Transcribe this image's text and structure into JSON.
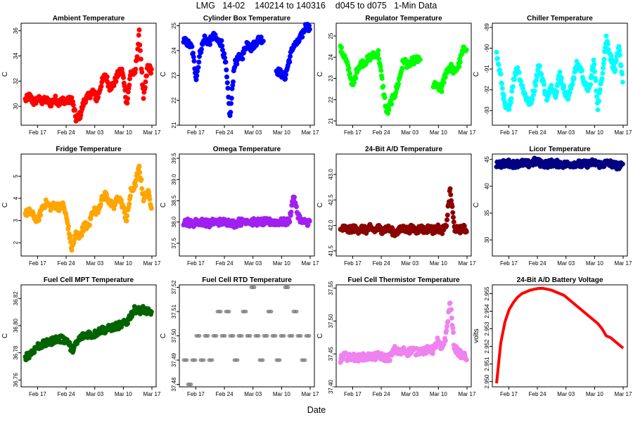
{
  "title": "LMG   14-02    140214 to 140316    d045 to d075   1-Min Data",
  "xlabel": "Date",
  "chart_data": [
    {
      "type": "scatter",
      "title": "Ambient Temperature",
      "ylabel": "C",
      "color": "#ff0000",
      "x_ticks": [
        "Feb 17",
        "Feb 24",
        "Mar 03",
        "Mar 10",
        "Mar 17"
      ],
      "y_ticks": [
        "30",
        "32",
        "34",
        "36"
      ],
      "ylim": [
        28.5,
        36.6
      ],
      "x": [
        0,
        1,
        2,
        3,
        4,
        5,
        6,
        7,
        8,
        9,
        10,
        11,
        12,
        13,
        14,
        15,
        16,
        17,
        18,
        19,
        20,
        21,
        22,
        23,
        24,
        25,
        26,
        27,
        28,
        29,
        30
      ],
      "values": [
        30.5,
        30.8,
        30.3,
        30.6,
        30.4,
        30.5,
        30.2,
        30.6,
        30.3,
        30.5,
        30.4,
        30.6,
        29.0,
        29.3,
        30.5,
        30.8,
        31.2,
        30.5,
        31.8,
        32.5,
        31.5,
        31.8,
        32.6,
        32.8,
        30.2,
        32.7,
        32.6,
        35.8,
        30.5,
        33.2,
        32.8
      ]
    },
    {
      "type": "scatter",
      "title": "Cylinder Box Temperature",
      "ylabel": "C",
      "color": "#0000ff",
      "x_ticks": [
        "Feb 17",
        "Feb 24",
        "Mar 03",
        "Mar 10",
        "Mar 17"
      ],
      "y_ticks": [
        "21",
        "22",
        "23",
        "24",
        "25"
      ],
      "ylim": [
        21,
        25.1
      ],
      "x": [
        0,
        1,
        2,
        3,
        4,
        5,
        6,
        7,
        8,
        9,
        10,
        11,
        12,
        13,
        14,
        15,
        16,
        17,
        18,
        19,
        20,
        21,
        22,
        23,
        24,
        25,
        26,
        27,
        28,
        29,
        30
      ],
      "values": [
        24.4,
        24.3,
        24.1,
        22.9,
        24.0,
        24.5,
        24.3,
        24.6,
        24.4,
        24.3,
        23.4,
        21.3,
        23.4,
        23.7,
        23.8,
        24.3,
        24.1,
        24.3,
        24.5,
        24.4,
        null,
        null,
        23.2,
        23.1,
        22.9,
        23.6,
        24.2,
        24.3,
        24.6,
        25.0,
        24.9
      ]
    },
    {
      "type": "scatter",
      "title": "Regulator Temperature",
      "ylabel": "C",
      "color": "#00ff00",
      "x_ticks": [
        "Feb 17",
        "Feb 24",
        "Mar 03",
        "Mar 10",
        "Mar 17"
      ],
      "y_ticks": [
        "21",
        "22",
        "23",
        "24",
        "25"
      ],
      "ylim": [
        20.8,
        25.6
      ],
      "x": [
        0,
        1,
        2,
        3,
        4,
        5,
        6,
        7,
        8,
        9,
        10,
        11,
        12,
        13,
        14,
        15,
        16,
        17,
        18,
        19,
        20,
        21,
        22,
        23,
        24,
        25,
        26,
        27,
        28,
        29,
        30
      ],
      "values": [
        24.4,
        24.0,
        23.4,
        22.6,
        23.5,
        23.7,
        23.8,
        24.0,
        24.1,
        24.2,
        22.7,
        21.3,
        21.9,
        22.3,
        23.0,
        23.9,
        23.6,
        23.8,
        23.9,
        23.8,
        null,
        null,
        22.7,
        22.6,
        22.5,
        23.3,
        23.6,
        23.3,
        23.6,
        24.3,
        24.5
      ]
    },
    {
      "type": "scatter",
      "title": "Chiller Temperature",
      "ylabel": "C",
      "color": "#00ffff",
      "x_ticks": [
        "Feb 17",
        "Feb 24",
        "Mar 03",
        "Mar 10",
        "Mar 17"
      ],
      "y_ticks": [
        "-93",
        "-92",
        "-91",
        "-90",
        "-89"
      ],
      "ylim": [
        -93.7,
        -88.8
      ],
      "x": [
        0,
        1,
        2,
        3,
        4,
        5,
        6,
        7,
        8,
        9,
        10,
        11,
        12,
        13,
        14,
        15,
        16,
        17,
        18,
        19,
        20,
        21,
        22,
        23,
        24,
        25,
        26,
        27,
        28,
        29,
        30
      ],
      "values": [
        -90.3,
        -91.4,
        -92.8,
        -93.0,
        -91.5,
        -90.9,
        -91.8,
        -92.4,
        -92.7,
        -91.9,
        -90.8,
        -91.6,
        -92.5,
        -91.8,
        -92.2,
        -91.2,
        -92.0,
        -92.4,
        -91.6,
        -90.8,
        -91.0,
        -91.8,
        -92.0,
        -90.6,
        -92.8,
        -91.3,
        -89.5,
        -90.4,
        -91.1,
        -90.0,
        -91.7
      ]
    },
    {
      "type": "scatter",
      "title": "Fridge Temperature",
      "ylabel": "C",
      "color": "#ffa500",
      "x_ticks": [
        "Feb 17",
        "Feb 24",
        "Mar 03",
        "Mar 10",
        "Mar 17"
      ],
      "y_ticks": [
        "2",
        "3",
        "4",
        "5"
      ],
      "ylim": [
        1.4,
        6.0
      ],
      "x": [
        0,
        1,
        2,
        3,
        4,
        5,
        6,
        7,
        8,
        9,
        10,
        11,
        12,
        13,
        14,
        15,
        16,
        17,
        18,
        19,
        20,
        21,
        22,
        23,
        24,
        25,
        26,
        27,
        28,
        29,
        30
      ],
      "values": [
        3.3,
        3.4,
        3.2,
        3.0,
        3.6,
        3.8,
        3.6,
        3.7,
        3.6,
        3.7,
        2.9,
        1.7,
        2.4,
        2.3,
        2.8,
        2.7,
        3.5,
        3.4,
        3.9,
        4.2,
        3.8,
        3.6,
        4.1,
        3.7,
        3.0,
        4.3,
        4.6,
        5.4,
        4.0,
        4.3,
        3.6
      ]
    },
    {
      "type": "scatter",
      "title": "Omega Temperature",
      "ylabel": "C",
      "color": "#a020f0",
      "x_ticks": [
        "Feb 17",
        "Feb 24",
        "Mar 03",
        "Mar 10",
        "Mar 17"
      ],
      "y_ticks": [
        "37.5",
        "38.0",
        "38.5",
        "39.0",
        "39.5"
      ],
      "ylim": [
        37.2,
        39.6
      ],
      "x": [
        0,
        1,
        2,
        3,
        4,
        5,
        6,
        7,
        8,
        9,
        10,
        11,
        12,
        13,
        14,
        15,
        16,
        17,
        18,
        19,
        20,
        21,
        22,
        23,
        24,
        25,
        26,
        27,
        28,
        29,
        30
      ],
      "values": [
        38.0,
        38.0,
        37.95,
        38.0,
        38.0,
        38.0,
        37.95,
        38.0,
        38.0,
        38.0,
        38.0,
        38.0,
        37.95,
        38.0,
        38.0,
        38.05,
        38.0,
        38.0,
        38.0,
        38.0,
        38.0,
        38.0,
        38.0,
        38.0,
        38.0,
        38.0,
        38.6,
        38.2,
        38.0,
        38.0,
        38.0
      ]
    },
    {
      "type": "scatter",
      "title": "24-Bit A/D Temperature",
      "ylabel": "C",
      "color": "#8b0000",
      "x_ticks": [
        "Feb 17",
        "Feb 24",
        "Mar 03",
        "Mar 10",
        "Mar 17"
      ],
      "y_ticks": [
        "41.5",
        "42.0",
        "42.5",
        "43.0"
      ],
      "ylim": [
        41.4,
        43.4
      ],
      "x": [
        0,
        1,
        2,
        3,
        4,
        5,
        6,
        7,
        8,
        9,
        10,
        11,
        12,
        13,
        14,
        15,
        16,
        17,
        18,
        19,
        20,
        21,
        22,
        23,
        24,
        25,
        26,
        27,
        28,
        29,
        30
      ],
      "values": [
        41.9,
        41.95,
        41.9,
        41.95,
        41.9,
        41.95,
        41.9,
        41.95,
        41.9,
        41.95,
        41.9,
        41.95,
        41.9,
        41.85,
        41.9,
        41.95,
        41.9,
        41.95,
        41.9,
        41.95,
        41.9,
        41.95,
        41.9,
        41.95,
        41.9,
        41.95,
        42.7,
        41.95,
        41.9,
        41.95,
        41.9
      ]
    },
    {
      "type": "scatter",
      "title": "Licor Temperature",
      "ylabel": "C",
      "color": "#000080",
      "x_ticks": [
        "Feb 17",
        "Feb 24",
        "Mar 03",
        "Mar 10",
        "Mar 17"
      ],
      "y_ticks": [
        "30",
        "35",
        "40",
        "45"
      ],
      "ylim": [
        27,
        46
      ],
      "x": [
        0,
        1,
        2,
        3,
        4,
        5,
        6,
        7,
        8,
        9,
        10,
        11,
        12,
        13,
        14,
        15,
        16,
        17,
        18,
        19,
        20,
        21,
        22,
        23,
        24,
        25,
        26,
        27,
        28,
        29,
        30
      ],
      "values": [
        44.2,
        44.1,
        44.2,
        44.3,
        44.1,
        44.2,
        44.3,
        44.2,
        44.1,
        44.6,
        44.4,
        44.2,
        44.1,
        44.3,
        44.2,
        44.2,
        44.0,
        44.1,
        44.2,
        44.3,
        44.0,
        44.1,
        44.2,
        44.4,
        44.1,
        44.0,
        44.3,
        44.2,
        43.9,
        43.8,
        43.7
      ]
    },
    {
      "type": "scatter",
      "title": "Fuel Cell MPT Temperature",
      "ylabel": "C",
      "color": "#006400",
      "x_ticks": [
        "Feb 17",
        "Feb 24",
        "Mar 03",
        "Mar 10",
        "Mar 17"
      ],
      "y_ticks": [
        "36.76",
        "36.78",
        "36.80",
        "36.82"
      ],
      "ylim": [
        36.755,
        36.83
      ],
      "x": [
        0,
        1,
        2,
        3,
        4,
        5,
        6,
        7,
        8,
        9,
        10,
        11,
        12,
        13,
        14,
        15,
        16,
        17,
        18,
        19,
        20,
        21,
        22,
        23,
        24,
        25,
        26,
        27,
        28,
        29,
        30
      ],
      "values": [
        36.777,
        36.779,
        36.782,
        36.785,
        36.786,
        36.787,
        36.788,
        36.79,
        36.79,
        36.79,
        36.789,
        36.782,
        36.786,
        36.791,
        36.793,
        36.794,
        36.793,
        36.795,
        36.797,
        36.797,
        36.798,
        36.799,
        36.8,
        36.801,
        36.802,
        36.808,
        36.812,
        36.811,
        36.812,
        36.81,
        36.809
      ]
    },
    {
      "type": "scatter",
      "title": "Fuel Cell RTD Temperature",
      "ylabel": "C",
      "color": "#808080",
      "x_ticks": [
        "Feb 17",
        "Feb 24",
        "Mar 03",
        "Mar 10",
        "Mar 17"
      ],
      "y_ticks": [
        "37.48",
        "37.49",
        "37.50",
        "37.51",
        "37.52"
      ],
      "ylim": [
        37.479,
        37.521
      ],
      "x": [
        0,
        1,
        2,
        3,
        4,
        5,
        6,
        7,
        8,
        9,
        10,
        11,
        12,
        13,
        14,
        15,
        16,
        17,
        18,
        19,
        20,
        21,
        22,
        23,
        24,
        25,
        26,
        27,
        28,
        29,
        30
      ],
      "values": [
        37.49,
        37.48,
        37.49,
        37.5,
        37.49,
        37.5,
        37.49,
        37.5,
        37.51,
        37.5,
        37.51,
        37.5,
        37.49,
        37.5,
        37.51,
        37.5,
        37.52,
        37.5,
        37.49,
        37.5,
        37.51,
        37.5,
        37.49,
        37.5,
        37.52,
        37.5,
        37.51,
        37.5,
        37.49,
        37.5,
        37.51
      ]
    },
    {
      "type": "scatter",
      "title": "Fuel Cell Thermistor Temperature",
      "ylabel": "C",
      "color": "#ee82ee",
      "x_ticks": [
        "Feb 17",
        "Feb 24",
        "Mar 03",
        "Mar 10",
        "Mar 17"
      ],
      "y_ticks": [
        "37.40",
        "37.45",
        "37.50",
        "37.55"
      ],
      "ylim": [
        37.4,
        37.555
      ],
      "x": [
        0,
        1,
        2,
        3,
        4,
        5,
        6,
        7,
        8,
        9,
        10,
        11,
        12,
        13,
        14,
        15,
        16,
        17,
        18,
        19,
        20,
        21,
        22,
        23,
        24,
        25,
        26,
        27,
        28,
        29,
        30
      ],
      "values": [
        37.442,
        37.447,
        37.444,
        37.446,
        37.443,
        37.446,
        37.444,
        37.447,
        37.445,
        37.448,
        37.445,
        37.444,
        37.446,
        37.458,
        37.45,
        37.455,
        37.452,
        37.457,
        37.453,
        37.456,
        37.454,
        37.458,
        37.455,
        37.47,
        37.456,
        37.478,
        37.53,
        37.46,
        37.452,
        37.447,
        37.445
      ]
    },
    {
      "type": "line",
      "title": "24-Bit A/D Battery Voltage",
      "ylabel": "volts",
      "color": "#ff0000",
      "x_ticks": [
        "Feb 17",
        "Feb 24",
        "Mar 03",
        "Mar 10",
        "Mar 17"
      ],
      "y_ticks": [
        "2.950",
        "2.951",
        "2.952",
        "2.953",
        "2.954",
        "2.955"
      ],
      "ylim": [
        2.9497,
        2.9555
      ],
      "x": [
        0,
        1,
        2,
        3,
        4,
        5,
        6,
        7,
        8,
        9,
        10,
        11,
        12,
        13,
        14,
        15,
        16,
        17,
        18,
        19,
        20,
        21,
        22,
        23,
        24,
        25,
        26,
        27,
        28,
        29,
        30
      ],
      "values": [
        2.9499,
        2.9522,
        2.9534,
        2.9541,
        2.9545,
        2.9548,
        2.955,
        2.9551,
        2.9552,
        2.95525,
        2.9553,
        2.9553,
        2.95525,
        2.9552,
        2.9551,
        2.955,
        2.9549,
        2.9547,
        2.9545,
        2.9543,
        2.9541,
        2.9539,
        2.9537,
        2.9535,
        2.9533,
        2.953,
        2.9526,
        2.9525,
        2.9523,
        2.9521,
        2.9519
      ]
    }
  ]
}
